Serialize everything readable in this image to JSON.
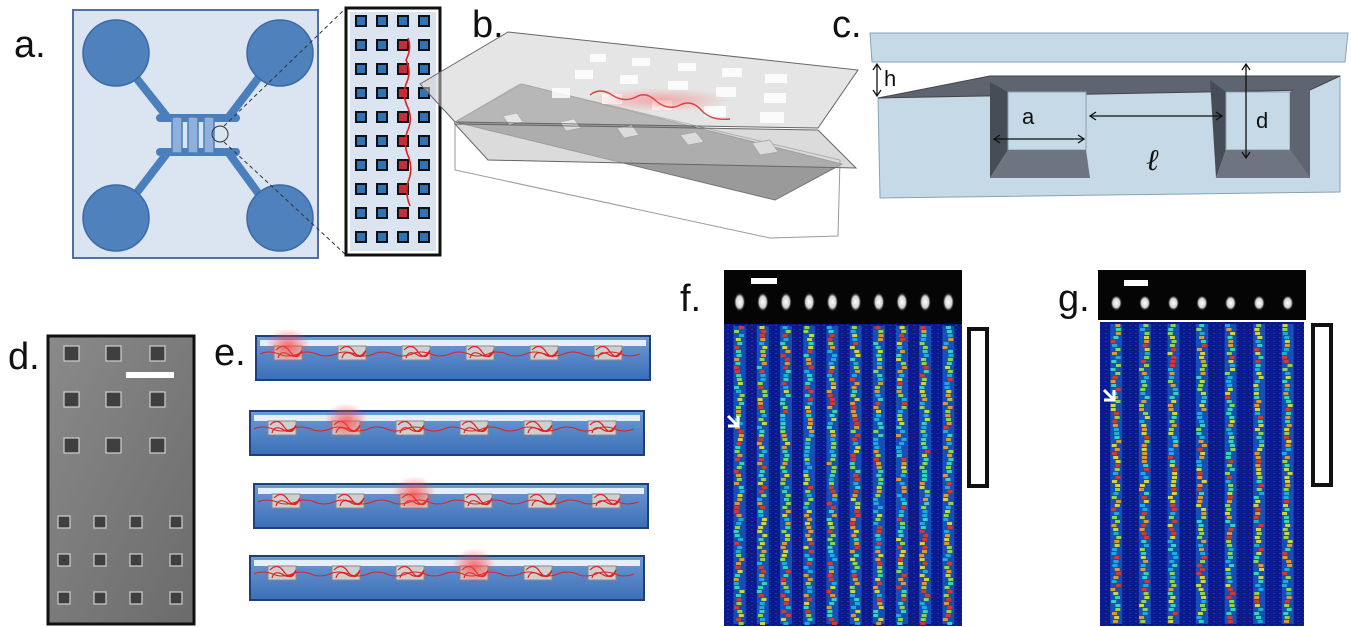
{
  "panel_labels": {
    "a": "a.",
    "b": "b.",
    "c": "c.",
    "d": "d.",
    "e": "e.",
    "f": "f.",
    "g": "g."
  },
  "dimension_symbols": {
    "h": "h",
    "a": "a",
    "l": "ℓ",
    "d": "d"
  },
  "colors": {
    "chip_fill": "#dbe5f1",
    "chip_border": "#4f6fa8",
    "reservoir": "#4f81bd",
    "channel": "#4a7ebd",
    "dna": "#e02020",
    "slab": "#c6d9e6",
    "kymo_bg": "#0a1a8c"
  },
  "kymographs": {
    "f": {
      "bright_spots": 10
    },
    "g": {
      "bright_spots": 7
    }
  },
  "panel_e": {
    "rows": 4,
    "pits_per_row": 6,
    "highlighted_pit": [
      0,
      1,
      2,
      3
    ]
  }
}
